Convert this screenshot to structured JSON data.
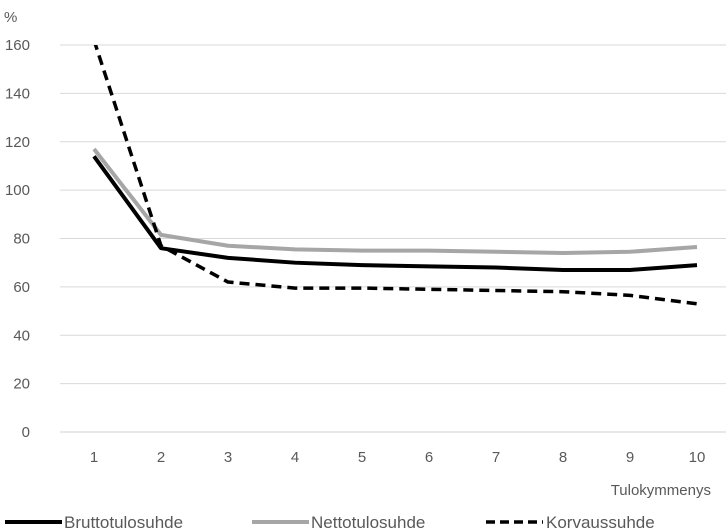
{
  "chart_data": {
    "type": "line",
    "ylabel": "%",
    "xlabel": "Tulokymmenys",
    "x": [
      1,
      2,
      3,
      4,
      5,
      6,
      7,
      8,
      9,
      10
    ],
    "ylim": [
      0,
      160
    ],
    "yticks": [
      0,
      20,
      40,
      60,
      80,
      100,
      120,
      140,
      160
    ],
    "grid": true,
    "legend_position": "bottom",
    "series": [
      {
        "name": "Bruttotulosuhde",
        "color": "#000000",
        "style": "solid",
        "values": [
          114,
          76,
          72,
          70,
          69,
          68.5,
          68,
          67,
          67,
          69
        ]
      },
      {
        "name": "Nettotulosuhde",
        "color": "#a6a6a6",
        "style": "solid",
        "values": [
          117,
          81.5,
          77,
          75.5,
          75,
          75,
          74.5,
          74,
          74.5,
          76.5
        ]
      },
      {
        "name": "Korvaussuhde",
        "color": "#000000",
        "style": "dashed",
        "values": [
          162,
          77,
          62,
          59.5,
          59.5,
          59,
          58.5,
          58,
          56.5,
          53
        ]
      }
    ]
  }
}
